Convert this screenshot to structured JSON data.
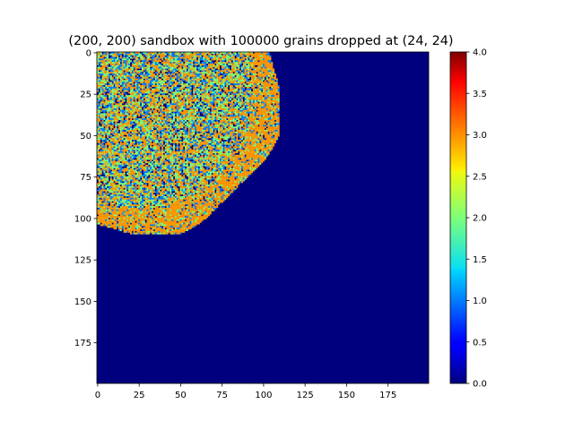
{
  "chart_data": {
    "type": "heatmap",
    "title": "(200, 200) sandbox with 100000 grains dropped at (24, 24)",
    "grid_shape": [
      200,
      200
    ],
    "grains": 100000,
    "drop_point": [
      24,
      24
    ],
    "colormap": "jet",
    "x_ticks": [
      0,
      25,
      50,
      75,
      100,
      125,
      150,
      175
    ],
    "y_ticks": [
      0,
      25,
      50,
      75,
      100,
      125,
      150,
      175
    ],
    "colorbar": {
      "range": [
        0.0,
        4.0
      ],
      "ticks": [
        "0.0",
        "0.5",
        "1.0",
        "1.5",
        "2.0",
        "2.5",
        "3.0",
        "3.5",
        "4.0"
      ]
    },
    "background_value": 0,
    "filled_region": {
      "x_extent": [
        0,
        110
      ],
      "y_extent": [
        0,
        110
      ],
      "dominant_value": 3,
      "values_present": [
        0,
        1,
        2,
        3
      ]
    },
    "grid": false
  }
}
